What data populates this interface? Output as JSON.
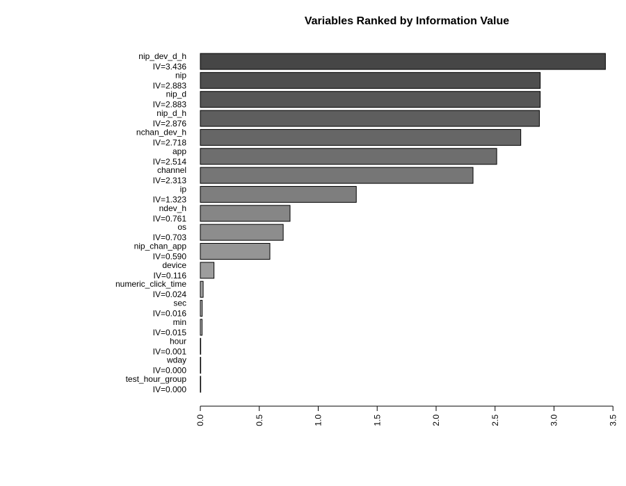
{
  "chart_data": {
    "type": "bar",
    "orientation": "horizontal",
    "title": "Variables Ranked by Information Value",
    "xlabel": "",
    "ylabel": "",
    "xlim": [
      0,
      3.5
    ],
    "x_ticks": [
      0.0,
      0.5,
      1.0,
      1.5,
      2.0,
      2.5,
      3.0,
      3.5
    ],
    "x_tick_labels": [
      "0.0",
      "0.5",
      "1.0",
      "1.5",
      "2.0",
      "2.5",
      "3.0",
      "3.5"
    ],
    "grid": false,
    "bar_color_scale": "gray gradient, darkest for the highest value to lightest for the lowest",
    "categories": [
      "nip_dev_d_h",
      "nip",
      "nip_d",
      "nip_d_h",
      "nchan_dev_h",
      "app",
      "channel",
      "ip",
      "ndev_h",
      "os",
      "nip_chan_app",
      "device",
      "numeric_click_time",
      "sec",
      "min",
      "hour",
      "wday",
      "test_hour_group"
    ],
    "value_labels": [
      "IV=3.436",
      "IV=2.883",
      "IV=2.883",
      "IV=2.876",
      "IV=2.718",
      "IV=2.514",
      "IV=2.313",
      "IV=1.323",
      "IV=0.761",
      "IV=0.703",
      "IV=0.590",
      "IV=0.116",
      "IV=0.024",
      "IV=0.016",
      "IV=0.015",
      "IV=0.001",
      "IV=0.000",
      "IV=0.000"
    ],
    "values": [
      3.436,
      2.883,
      2.883,
      2.876,
      2.718,
      2.514,
      2.313,
      1.323,
      0.761,
      0.703,
      0.59,
      0.116,
      0.024,
      0.016,
      0.015,
      0.001,
      0.0,
      0.0
    ]
  }
}
